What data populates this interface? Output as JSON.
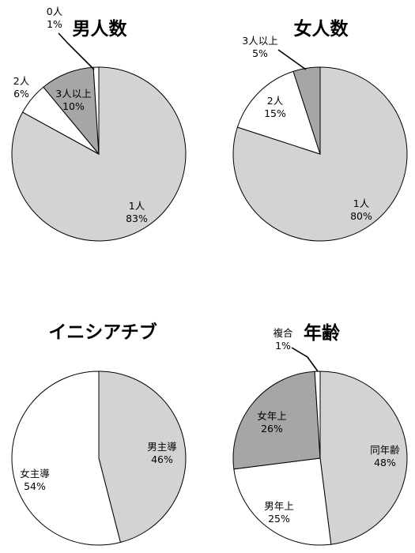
{
  "chart_data": [
    {
      "type": "pie",
      "title": "男人数",
      "slices": [
        {
          "category": "1人",
          "value": 83,
          "label": "83%",
          "color": "#d3d3d3"
        },
        {
          "category": "2人",
          "value": 6,
          "label": "6%",
          "color": "#ffffff"
        },
        {
          "category": "3人以上",
          "value": 10,
          "label": "10%",
          "color": "#a6a6a6"
        },
        {
          "category": "0人",
          "value": 1,
          "label": "1%",
          "color": "#ffffff"
        }
      ]
    },
    {
      "type": "pie",
      "title": "女人数",
      "slices": [
        {
          "category": "1人",
          "value": 80,
          "label": "80%",
          "color": "#d3d3d3"
        },
        {
          "category": "2人",
          "value": 15,
          "label": "15%",
          "color": "#ffffff"
        },
        {
          "category": "3人以上",
          "value": 5,
          "label": "5%",
          "color": "#a6a6a6"
        }
      ]
    },
    {
      "type": "pie",
      "title": "イニシアチブ",
      "slices": [
        {
          "category": "男主導",
          "value": 46,
          "label": "46%",
          "color": "#d3d3d3"
        },
        {
          "category": "女主導",
          "value": 54,
          "label": "54%",
          "color": "#ffffff"
        }
      ]
    },
    {
      "type": "pie",
      "title": "年齢",
      "slices": [
        {
          "category": "同年齢",
          "value": 48,
          "label": "48%",
          "color": "#d3d3d3"
        },
        {
          "category": "男年上",
          "value": 25,
          "label": "25%",
          "color": "#ffffff"
        },
        {
          "category": "女年上",
          "value": 26,
          "label": "26%",
          "color": "#a6a6a6"
        },
        {
          "category": "複合",
          "value": 1,
          "label": "1%",
          "color": "#ffffff"
        }
      ]
    }
  ]
}
